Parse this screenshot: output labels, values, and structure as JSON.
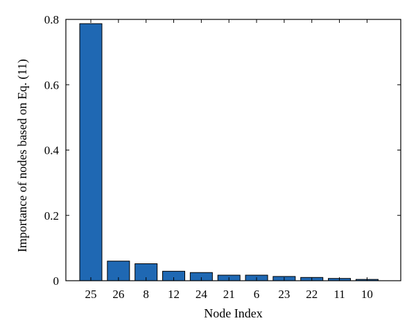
{
  "chart_data": {
    "type": "bar",
    "categories": [
      "25",
      "26",
      "8",
      "12",
      "24",
      "21",
      "6",
      "23",
      "22",
      "11",
      "10"
    ],
    "values": [
      0.787,
      0.06,
      0.052,
      0.029,
      0.025,
      0.017,
      0.017,
      0.013,
      0.01,
      0.007,
      0.004
    ],
    "xlabel": "Node Index",
    "ylabel": "Importance of nodes based on Eq. (11)",
    "ylim": [
      0,
      0.8
    ],
    "yticks": [
      0,
      0.2,
      0.4,
      0.6,
      0.8
    ],
    "ytick_labels": [
      "0",
      "0.2",
      "0.4",
      "0.6",
      "0.8"
    ],
    "bar_color": "#1f68b3",
    "grid": false,
    "legend": "none"
  }
}
